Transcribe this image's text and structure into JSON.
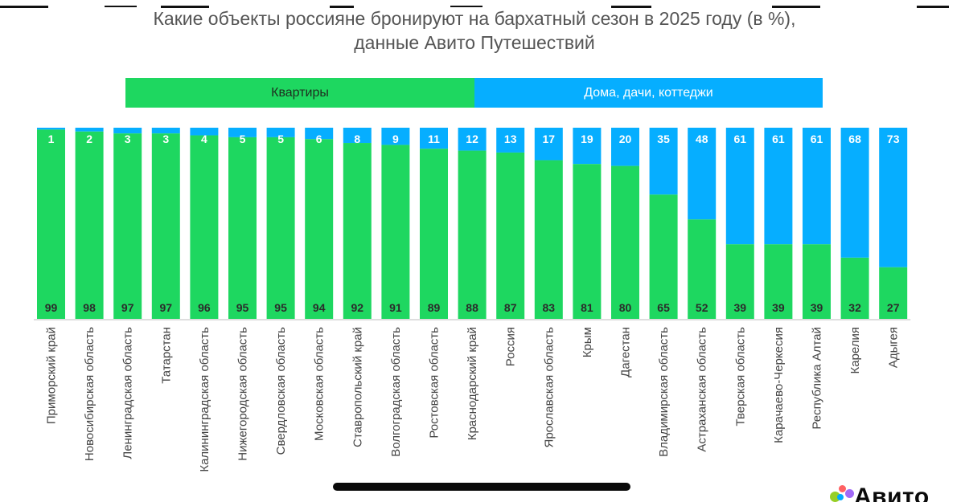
{
  "chart_data": {
    "type": "bar",
    "stacked": true,
    "title": "Какие объекты россияне бронируют на бархатный сезон в 2025 году (в %),",
    "subtitle": "данные Авито Путешествий",
    "legend_position": "top",
    "ylim": [
      0,
      100
    ],
    "grid": false,
    "categories": [
      "Приморский край",
      "Новосибирская область",
      "Ленинградская область",
      "Татарстан",
      "Калининградская область",
      "Нижегородская область",
      "Свердловская область",
      "Московская область",
      "Ставропольский край",
      "Волгоградская область",
      "Ростовская область",
      "Краснодарский край",
      "Россия",
      "Ярославская область",
      "Крым",
      "Дагестан",
      "Владимирская область",
      "Астраханская область",
      "Тверская область",
      "Карачаево-Черкесия",
      "Республика Алтай",
      "Карелия",
      "Адыгея"
    ],
    "series": [
      {
        "name": "Квартиры",
        "color": "#1ed760",
        "values": [
          99,
          98,
          97,
          97,
          96,
          95,
          95,
          94,
          92,
          91,
          89,
          88,
          87,
          83,
          81,
          80,
          65,
          52,
          39,
          39,
          39,
          32,
          27
        ]
      },
      {
        "name": "Дома, дачи, коттеджи",
        "color": "#06aeff",
        "values": [
          1,
          2,
          3,
          3,
          4,
          5,
          5,
          6,
          8,
          9,
          11,
          12,
          13,
          17,
          19,
          20,
          35,
          48,
          61,
          61,
          61,
          68,
          73
        ]
      }
    ]
  },
  "logo": {
    "text": "Авито",
    "colors": [
      "#97cf26",
      "#ff6163",
      "#0af",
      "#a169f7"
    ]
  }
}
